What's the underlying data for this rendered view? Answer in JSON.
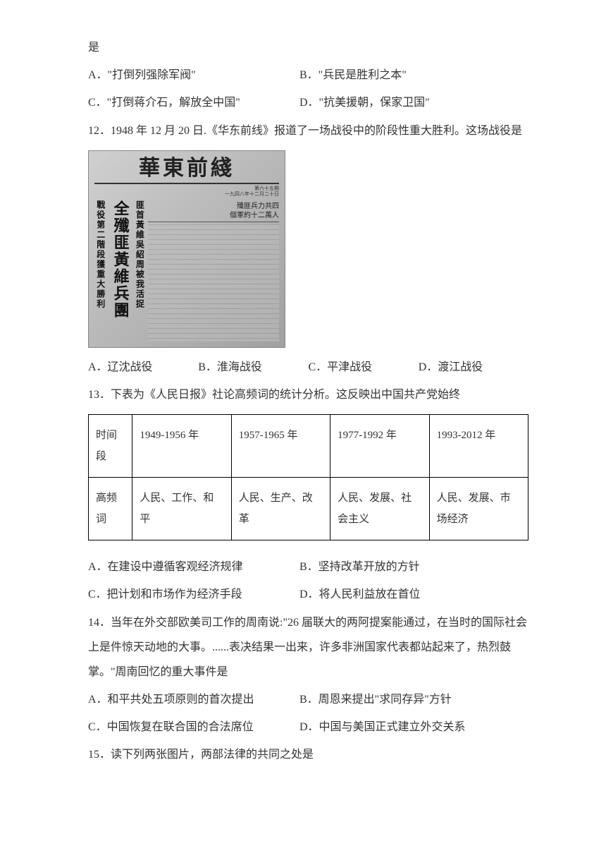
{
  "q11": {
    "tail": "是",
    "optA": "A．\"打倒列强除军阀\"",
    "optB": "B．\"兵民是胜利之本\"",
    "optC": "C．\"打倒蒋介石，解放全中国\"",
    "optD": "D．\"抗美援朝，保家卫国\""
  },
  "q12": {
    "stem": "12．1948 年 12 月 20 日.《华东前线》报道了一场战役中的阶段性重大胜利。这场战役是",
    "newspaper": {
      "title": "華東前綫",
      "issue": "第六十五期",
      "date": "一九四八年十二月二十日",
      "col1": "戰役第二階段獲重大勝利",
      "col2": "全殲匪黃維兵團",
      "col3": "匪首黃維吳紹周被我活捉",
      "col4a": "殲匪兵力共四",
      "col4b": "個軍約十二萬人"
    },
    "optA": "A．辽沈战役",
    "optB": "B．淮海战役",
    "optC": "C．平津战役",
    "optD": "D．渡江战役"
  },
  "q13": {
    "stem": "13．下表为《人民日报》社论高频词的统计分析。这反映出中国共产党始终",
    "table": {
      "row_labels": [
        "时间段",
        "高频词"
      ],
      "cols": [
        "1949-1956 年",
        "1957-1965 年",
        "1977-1992 年",
        "1993-2012 年"
      ],
      "freq": [
        "人民、工作、和平",
        "人民、生产、改革",
        "人民、发展、社会主义",
        "人民、发展、市场经济"
      ]
    },
    "optA": "A．在建设中遵循客观经济规律",
    "optB": "B．坚持改革开放的方针",
    "optC": "C．把计划和市场作为经济手段",
    "optD": "D．将人民利益放在首位"
  },
  "q14": {
    "stem": "14．当年在外交部欧美司工作的周南说:\"26 届联大的两阿提案能通过，在当时的国际社会上是件惊天动地的大事。......表决结果一出来，许多非洲国家代表都站起来了，热烈鼓掌。\"周南回忆的重大事件是",
    "optA": "A．和平共处五项原则的首次提出",
    "optB": "B．周恩来提出\"求同存异\"方针",
    "optC": "C．中国恢复在联合国的合法席位",
    "optD": "D．中国与美国正式建立外交关系"
  },
  "q15": {
    "stem": "15．读下列两张图片，两部法律的共同之处是"
  }
}
